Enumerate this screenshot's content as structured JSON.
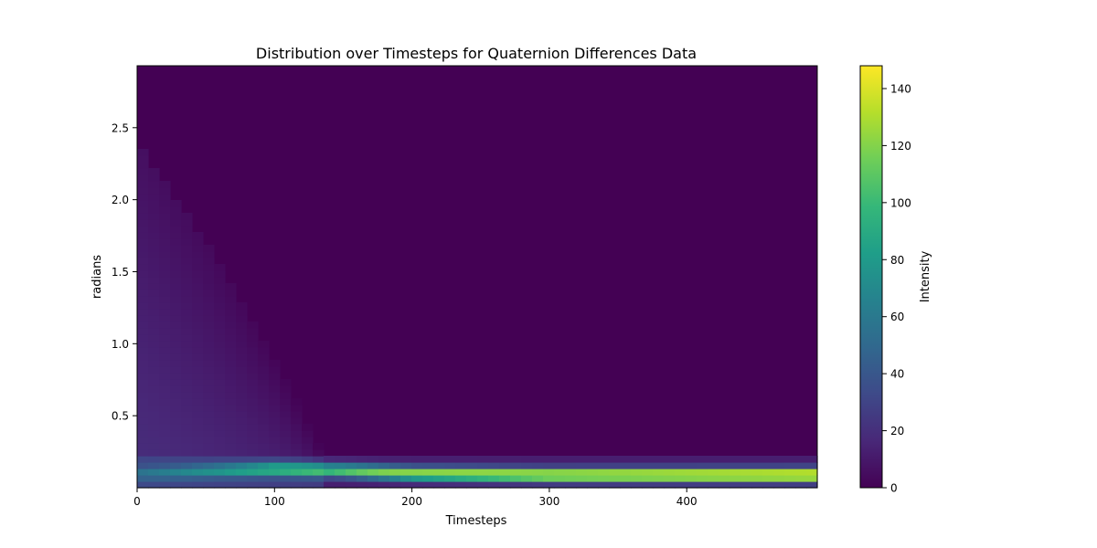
{
  "chart_data": {
    "type": "heatmap",
    "title": "Distribution over Timesteps for Quaternion Differences Data",
    "xlabel": "Timesteps",
    "ylabel": "radians",
    "xlim": [
      0,
      495
    ],
    "ylim": [
      0,
      2.93
    ],
    "x_ticks": [
      0,
      100,
      200,
      300,
      400
    ],
    "y_ticks": [
      0.5,
      1.0,
      1.5,
      2.0,
      2.5
    ],
    "colormap": "viridis",
    "colorbar": {
      "label": "Intensity",
      "range": [
        0,
        148
      ],
      "ticks": [
        0,
        20,
        40,
        60,
        80,
        100,
        120,
        140
      ]
    },
    "features": {
      "bright_band": [
        {
          "x": 0,
          "y": 0.1,
          "intensity": 25
        },
        {
          "x": 60,
          "y": 0.12,
          "intensity": 50
        },
        {
          "x": 100,
          "y": 0.13,
          "intensity": 75
        },
        {
          "x": 150,
          "y": 0.12,
          "intensity": 95
        },
        {
          "x": 200,
          "y": 0.1,
          "intensity": 115
        },
        {
          "x": 300,
          "y": 0.09,
          "intensity": 135
        },
        {
          "x": 400,
          "y": 0.09,
          "intensity": 142
        },
        {
          "x": 495,
          "y": 0.09,
          "intensity": 148
        }
      ],
      "diffuse_spread": [
        {
          "x": 0,
          "y_max": 2.4
        },
        {
          "x": 50,
          "y_max": 1.7
        },
        {
          "x": 100,
          "y_max": 0.9
        },
        {
          "x": 135,
          "y_max": 0.25
        }
      ]
    },
    "grid": false,
    "legend": "none"
  },
  "colors": {
    "viridis": [
      "#440154",
      "#482878",
      "#3e4a89",
      "#31688e",
      "#26828e",
      "#1f9e89",
      "#35b779",
      "#6ece58",
      "#b5de2b",
      "#fde725"
    ]
  }
}
